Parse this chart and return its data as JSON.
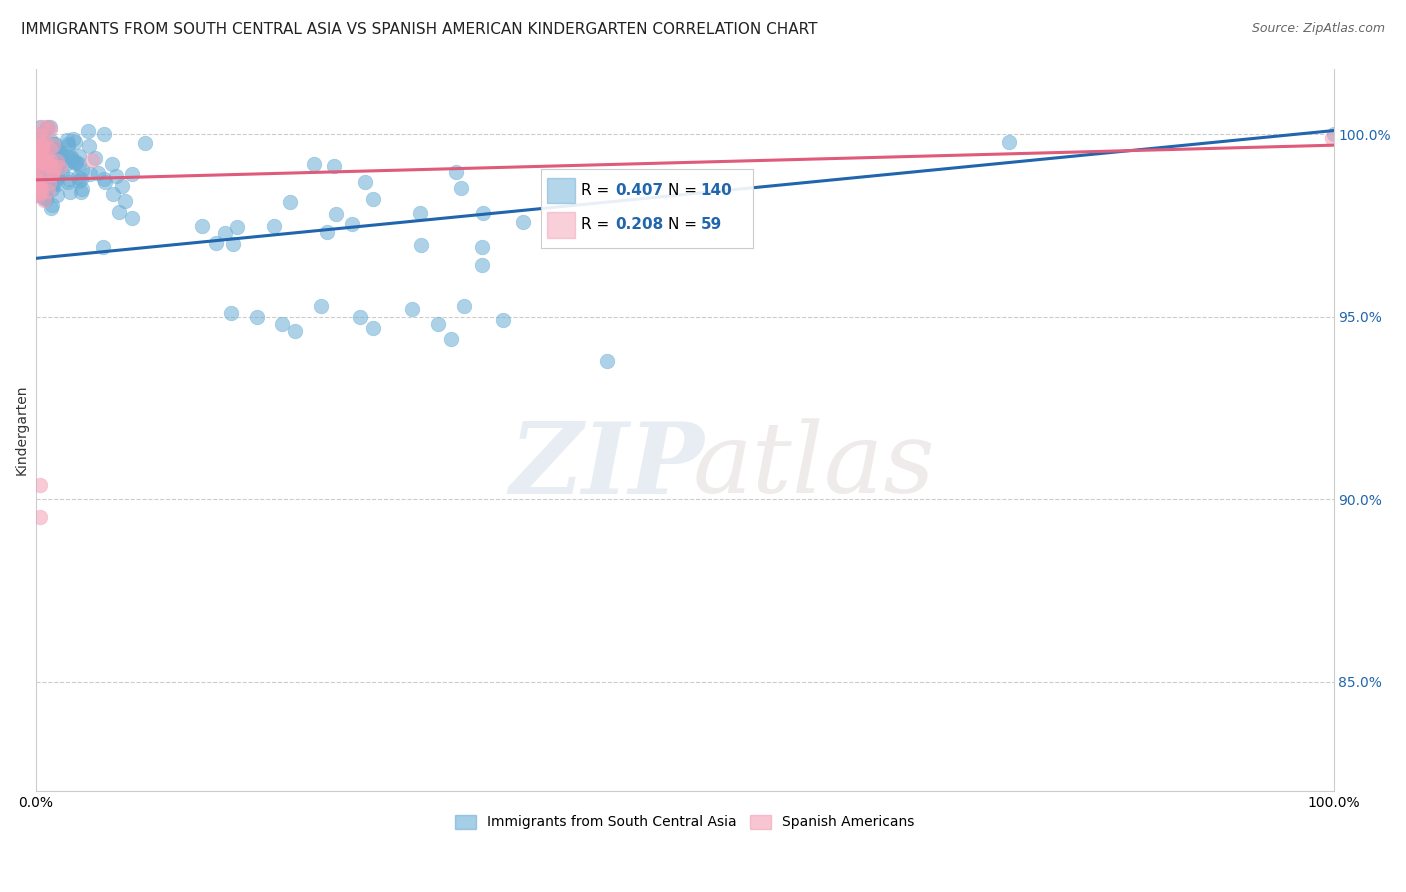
{
  "title": "IMMIGRANTS FROM SOUTH CENTRAL ASIA VS SPANISH AMERICAN KINDERGARTEN CORRELATION CHART",
  "source": "Source: ZipAtlas.com",
  "ylabel": "Kindergarten",
  "ytick_labels": [
    "85.0%",
    "90.0%",
    "95.0%",
    "100.0%"
  ],
  "ytick_values": [
    0.85,
    0.9,
    0.95,
    1.0
  ],
  "xlim": [
    0.0,
    1.0
  ],
  "ylim": [
    0.82,
    1.018
  ],
  "R_blue": 0.407,
  "N_blue": 140,
  "R_pink": 0.208,
  "N_pink": 59,
  "blue_color": "#6baed6",
  "pink_color": "#f4a0b5",
  "blue_line_color": "#2166ac",
  "pink_line_color": "#e05a7a",
  "legend_label_blue": "Immigrants from South Central Asia",
  "legend_label_pink": "Spanish Americans",
  "background_color": "#ffffff",
  "grid_color": "#cccccc",
  "title_fontsize": 11,
  "axis_label_fontsize": 10,
  "tick_fontsize": 10,
  "blue_line_x0": 0.0,
  "blue_line_x1": 1.0,
  "blue_line_y0": 0.966,
  "blue_line_y1": 1.001,
  "pink_line_x0": 0.0,
  "pink_line_x1": 1.0,
  "pink_line_y0": 0.9875,
  "pink_line_y1": 0.997
}
